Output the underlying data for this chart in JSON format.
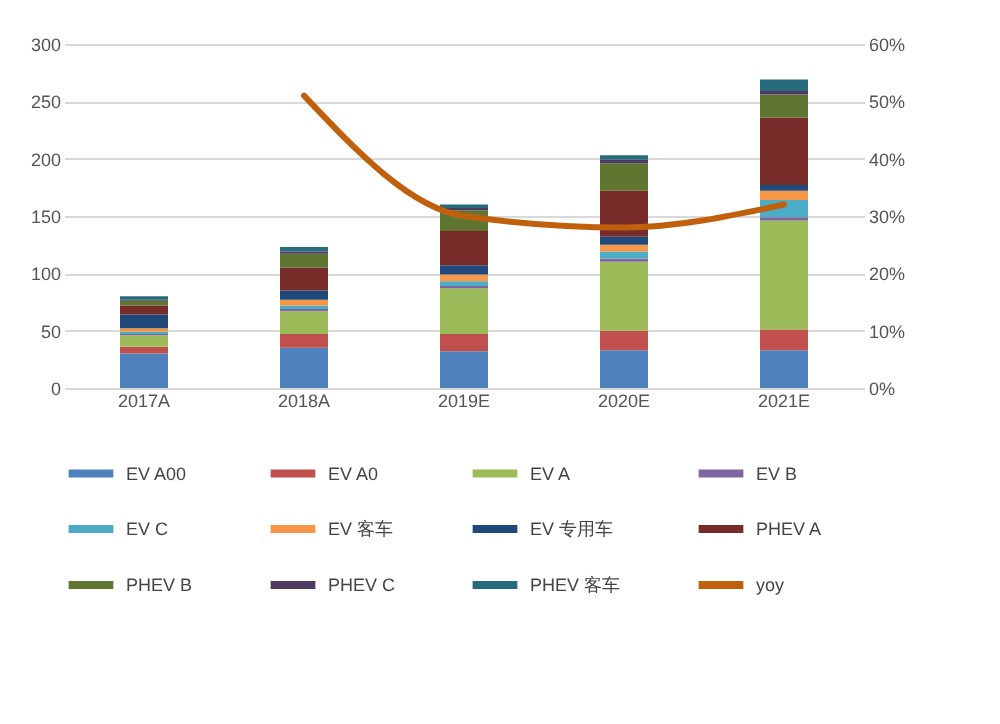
{
  "chart_data": {
    "type": "bar",
    "stacked": true,
    "categories": [
      "2017A",
      "2018A",
      "2019E",
      "2020E",
      "2021E"
    ],
    "ylim": [
      0,
      300
    ],
    "yticks": [
      0,
      50,
      100,
      150,
      200,
      250,
      300
    ],
    "y2lim": [
      0,
      60
    ],
    "y2ticks": [
      {
        "value": 0,
        "label": "0%"
      },
      {
        "value": 10,
        "label": "10%"
      },
      {
        "value": 20,
        "label": "20%"
      },
      {
        "value": 30,
        "label": "30%"
      },
      {
        "value": 40,
        "label": "40%"
      },
      {
        "value": 50,
        "label": "50%"
      },
      {
        "value": 60,
        "label": "60%"
      }
    ],
    "grid": "y",
    "legend": "bottom",
    "series": [
      {
        "name": "EV A00",
        "color": "#4f81bd",
        "values": [
          30,
          35,
          32,
          33,
          33
        ]
      },
      {
        "name": "EV A0",
        "color": "#c0504d",
        "values": [
          6,
          12,
          15,
          17,
          18
        ]
      },
      {
        "name": "EV A",
        "color": "#9bbb59",
        "values": [
          10,
          20,
          40,
          60,
          95
        ]
      },
      {
        "name": "EV B",
        "color": "#8064a2",
        "values": [
          1,
          2,
          2,
          3,
          3
        ]
      },
      {
        "name": "EV C",
        "color": "#4bacc6",
        "values": [
          2,
          3,
          4,
          6,
          15
        ]
      },
      {
        "name": "EV 客车",
        "color": "#f79646",
        "values": [
          3,
          5,
          6,
          6,
          8
        ]
      },
      {
        "name": "EV 专用车",
        "color": "#1f497d",
        "values": [
          12,
          8,
          8,
          7,
          5
        ]
      },
      {
        "name": "PHEV A",
        "color": "#772c2a",
        "values": [
          8,
          20,
          30,
          40,
          59
        ]
      },
      {
        "name": "PHEV B",
        "color": "#5f7530",
        "values": [
          4,
          12,
          18,
          24,
          20
        ]
      },
      {
        "name": "PHEV C",
        "color": "#4d3b62",
        "values": [
          1,
          2,
          2,
          3,
          3
        ]
      },
      {
        "name": "PHEV 客车",
        "color": "#276a7c",
        "values": [
          3,
          4,
          3,
          4,
          10
        ]
      },
      {
        "name": "yoy",
        "color": "#c0600c",
        "type": "line",
        "axis": "y2",
        "marker": "none",
        "line_style": "solid",
        "values": [
          null,
          51,
          30,
          28,
          32
        ]
      }
    ]
  }
}
